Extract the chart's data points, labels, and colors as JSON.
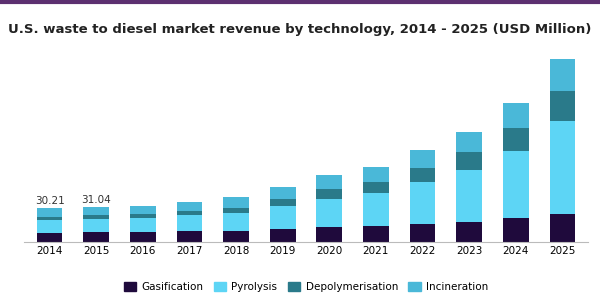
{
  "title": "U.S. waste to diesel market revenue by technology, 2014 - 2025 (USD Million)",
  "years": [
    2014,
    2015,
    2016,
    2017,
    2018,
    2019,
    2020,
    2021,
    2022,
    2023,
    2024,
    2025
  ],
  "annotations": {
    "2014": "30.21",
    "2015": "31.04"
  },
  "segments": {
    "Gasification": {
      "color": "#1f0a3c",
      "values": [
        8.0,
        8.5,
        8.8,
        9.5,
        10.0,
        11.5,
        13.0,
        14.0,
        15.5,
        18.0,
        21.0,
        25.0
      ]
    },
    "Pyrolysis": {
      "color": "#5dd5f5",
      "values": [
        11.5,
        12.0,
        12.2,
        14.0,
        15.5,
        20.0,
        25.5,
        29.0,
        38.0,
        46.0,
        60.0,
        82.0
      ]
    },
    "Depolymerisation": {
      "color": "#2a7a8a",
      "values": [
        2.8,
        3.0,
        3.5,
        4.2,
        5.0,
        6.5,
        8.5,
        10.0,
        12.5,
        15.5,
        20.0,
        27.0
      ]
    },
    "Incineration": {
      "color": "#4ab8d8",
      "values": [
        7.91,
        7.54,
        7.7,
        8.0,
        9.5,
        11.0,
        12.0,
        13.5,
        16.0,
        18.5,
        22.0,
        28.0
      ]
    }
  },
  "legend_order": [
    "Gasification",
    "Pyrolysis",
    "Depolymerisation",
    "Incineration"
  ],
  "background_color": "#ffffff",
  "header_color": "#f0f0f0",
  "title_fontsize": 9.5,
  "bar_width": 0.55,
  "ylim": [
    0,
    165
  ]
}
